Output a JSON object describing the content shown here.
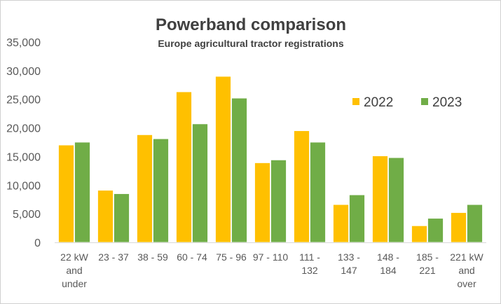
{
  "chart_data": {
    "type": "bar",
    "title": "Powerband comparison",
    "subtitle": "Europe agricultural tractor registrations",
    "xlabel": "",
    "ylabel": "",
    "ylim": [
      0,
      35000
    ],
    "yticks": [
      "0",
      "5,000",
      "10,000",
      "15,000",
      "20,000",
      "25,000",
      "30,000",
      "35,000"
    ],
    "ytick_values": [
      0,
      5000,
      10000,
      15000,
      20000,
      25000,
      30000,
      35000
    ],
    "grid": false,
    "legend_position": "top-right",
    "categories": [
      [
        "22 kW",
        "and",
        "under"
      ],
      [
        "23 - 37"
      ],
      [
        "38 - 59"
      ],
      [
        "60 - 74"
      ],
      [
        "75 - 96"
      ],
      [
        "97 - 110"
      ],
      [
        "111 -",
        "132"
      ],
      [
        "133 -",
        "147"
      ],
      [
        "148 -",
        "184"
      ],
      [
        "185 -",
        "221"
      ],
      [
        "221 kW",
        "and",
        "over"
      ]
    ],
    "series": [
      {
        "name": "2022",
        "color": "#FFC000",
        "values": [
          17000,
          9100,
          18800,
          26300,
          29000,
          13900,
          19500,
          6600,
          15100,
          2900,
          5200
        ]
      },
      {
        "name": "2023",
        "color": "#70AD47",
        "values": [
          17500,
          8500,
          18100,
          20700,
          25200,
          14400,
          17500,
          8300,
          14800,
          4200,
          6600
        ]
      }
    ]
  }
}
